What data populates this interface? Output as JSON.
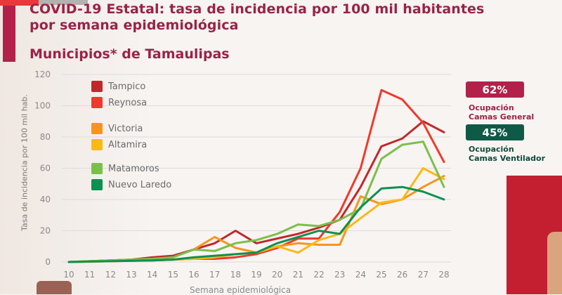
{
  "header": {
    "title_line1": "COVID-19 Estatal: tasa de incidencia por 100 mil habitantes",
    "title_line2": "por semana epidemiológica",
    "subtitle": "Municipios* de Tamaulipas"
  },
  "occupancy": {
    "general": {
      "value": "62%",
      "caption_line1": "Ocupación",
      "caption_line2": "Camas General",
      "color": "#b3214a"
    },
    "ventilator": {
      "value": "45%",
      "caption_line1": "Ocupación",
      "caption_line2": "Camas Ventilador",
      "color": "#0f5a47"
    }
  },
  "chart_data": {
    "type": "line",
    "title": "COVID-19 Estatal: tasa de incidencia por 100 mil habitantes por semana epidemiológica",
    "subtitle": "Municipios* de Tamaulipas",
    "xlabel": "Semana epidemiológica",
    "ylabel": "Tasa de incidencia por 100 mil hab.",
    "x": [
      10,
      11,
      12,
      13,
      14,
      15,
      16,
      17,
      18,
      19,
      20,
      21,
      22,
      23,
      24,
      25,
      26,
      27,
      28
    ],
    "x_tick_labels": [
      "10",
      "11",
      "12",
      "13",
      "14",
      "15",
      "16",
      "17",
      "18",
      "19",
      "20",
      "21",
      "22",
      "23",
      "24",
      "25",
      "26",
      "27",
      "28"
    ],
    "y_ticks": [
      0,
      20,
      40,
      60,
      80,
      100,
      120
    ],
    "y_tick_labels": [
      "0",
      "20",
      "40",
      "60",
      "80",
      "100",
      "120"
    ],
    "ylim": [
      0,
      120
    ],
    "grid": true,
    "legend_position": "top-left",
    "series": [
      {
        "name": "Tampico",
        "color": "#c0282b",
        "values": [
          0,
          0.5,
          1,
          1.5,
          3,
          4,
          8,
          12,
          20,
          12,
          15,
          18,
          22,
          27,
          48,
          74,
          79,
          90,
          83
        ]
      },
      {
        "name": "Reynosa",
        "color": "#ee3a2c",
        "values": [
          0,
          0.3,
          0.5,
          0.8,
          1,
          1.5,
          2,
          2,
          3,
          5,
          9,
          15,
          15,
          32,
          60,
          110,
          104,
          89,
          64
        ]
      },
      {
        "name": "Victoria",
        "color": "#f7941d",
        "values": [
          0,
          0.5,
          1,
          1.5,
          2,
          3,
          8,
          16,
          9,
          6,
          10,
          12,
          11,
          11,
          42,
          37,
          40,
          48,
          55
        ]
      },
      {
        "name": "Altamira",
        "color": "#fbb917",
        "values": [
          0,
          0.3,
          0.5,
          0.8,
          1,
          1.5,
          2,
          3,
          5,
          6,
          10,
          6,
          14,
          18,
          28,
          38,
          40,
          60,
          53
        ]
      },
      {
        "name": "Matamoros",
        "color": "#7bbf4b",
        "values": [
          0,
          0.5,
          1,
          1.5,
          2,
          3,
          8,
          7,
          12,
          14,
          18,
          24,
          23,
          27,
          34,
          66,
          75,
          77,
          48
        ]
      },
      {
        "name": "Nuevo Laredo",
        "color": "#0c9150",
        "values": [
          0,
          0.3,
          0.5,
          0.8,
          1,
          1.5,
          3,
          4,
          5,
          6,
          12,
          16,
          20,
          18,
          35,
          47,
          48,
          45,
          40
        ]
      }
    ]
  }
}
